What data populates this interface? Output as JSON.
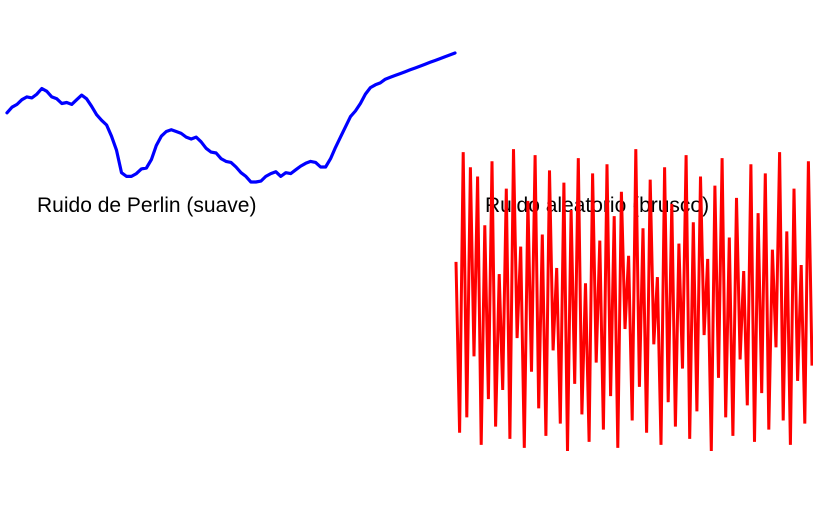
{
  "chart_data": [
    {
      "type": "line",
      "title": "Ruido de Perlin (suave)",
      "color": "#0000ff",
      "grid": false,
      "axes_visible": false,
      "x": [
        0,
        1,
        2,
        3,
        4,
        5,
        6,
        7,
        8,
        9,
        10,
        11,
        12,
        13,
        14,
        15,
        16,
        17,
        18,
        19,
        20,
        21,
        22,
        23,
        24,
        25,
        26,
        27,
        28,
        29,
        30,
        31,
        32,
        33,
        34,
        35,
        36,
        37,
        38,
        39,
        40,
        41,
        42,
        43,
        44,
        45,
        46,
        47,
        48,
        49,
        50,
        51,
        52,
        53,
        54,
        55,
        56,
        57,
        58,
        59,
        60,
        61,
        62,
        63,
        64,
        65,
        66,
        67,
        68,
        69,
        70,
        71,
        72,
        73,
        74,
        75,
        76,
        77,
        78,
        79,
        80,
        81,
        82,
        83,
        84,
        85,
        86,
        87,
        88,
        89,
        90
      ],
      "values": [
        0.7,
        0.76,
        0.79,
        0.84,
        0.87,
        0.86,
        0.9,
        0.96,
        0.93,
        0.87,
        0.85,
        0.8,
        0.81,
        0.79,
        0.84,
        0.89,
        0.85,
        0.77,
        0.68,
        0.62,
        0.57,
        0.45,
        0.3,
        0.06,
        0.02,
        0.02,
        0.05,
        0.1,
        0.11,
        0.2,
        0.35,
        0.45,
        0.5,
        0.52,
        0.5,
        0.48,
        0.44,
        0.42,
        0.44,
        0.39,
        0.32,
        0.28,
        0.27,
        0.21,
        0.18,
        0.17,
        0.12,
        0.06,
        0.02,
        -0.04,
        -0.04,
        -0.03,
        0.02,
        0.05,
        0.07,
        0.02,
        0.06,
        0.05,
        0.09,
        0.13,
        0.16,
        0.18,
        0.17,
        0.12,
        0.12,
        0.21,
        0.33,
        0.44,
        0.55,
        0.66,
        0.72,
        0.8,
        0.9,
        0.97,
        1.0,
        1.02,
        1.06,
        1.08,
        1.1,
        1.12,
        1.14,
        1.16,
        1.18,
        1.2,
        1.22,
        1.24,
        1.26,
        1.28,
        1.3,
        1.32,
        1.34
      ],
      "xlim": [
        0,
        90
      ],
      "ylim": [
        -0.5,
        1.8
      ]
    },
    {
      "type": "line",
      "title": "Ruido aleatorio (brusco)",
      "color": "#ff0000",
      "grid": false,
      "axes_visible": false,
      "x": [
        0,
        1,
        2,
        3,
        4,
        5,
        6,
        7,
        8,
        9,
        10,
        11,
        12,
        13,
        14,
        15,
        16,
        17,
        18,
        19,
        20,
        21,
        22,
        23,
        24,
        25,
        26,
        27,
        28,
        29,
        30,
        31,
        32,
        33,
        34,
        35,
        36,
        37,
        38,
        39,
        40,
        41,
        42,
        43,
        44,
        45,
        46,
        47,
        48,
        49,
        50,
        51,
        52,
        53,
        54,
        55,
        56,
        57,
        58,
        59,
        60,
        61,
        62,
        63,
        64,
        65,
        66,
        67,
        68,
        69,
        70,
        71,
        72,
        73,
        74,
        75,
        76,
        77,
        78,
        79,
        80,
        81,
        82,
        83,
        84,
        85,
        86,
        87,
        88,
        89,
        90,
        91,
        92,
        93,
        94,
        95,
        96,
        97,
        98,
        99
      ],
      "values": [
        0.62,
        0.06,
        0.98,
        0.11,
        0.93,
        0.31,
        0.9,
        0.02,
        0.74,
        0.17,
        0.95,
        0.08,
        0.58,
        0.2,
        0.86,
        0.04,
        0.99,
        0.37,
        0.67,
        0.01,
        0.82,
        0.26,
        0.97,
        0.14,
        0.71,
        0.05,
        0.92,
        0.33,
        0.6,
        0.09,
        0.88,
        0.0,
        0.79,
        0.22,
        0.96,
        0.12,
        0.55,
        0.03,
        0.91,
        0.29,
        0.69,
        0.07,
        0.94,
        0.18,
        0.77,
        0.01,
        0.85,
        0.4,
        0.64,
        0.1,
        0.99,
        0.21,
        0.73,
        0.06,
        0.89,
        0.35,
        0.57,
        0.02,
        0.93,
        0.16,
        0.81,
        0.08,
        0.68,
        0.27,
        0.97,
        0.04,
        0.75,
        0.13,
        0.9,
        0.38,
        0.63,
        0.0,
        0.87,
        0.24,
        0.96,
        0.11,
        0.7,
        0.05,
        0.83,
        0.3,
        0.59,
        0.15,
        0.94,
        0.03,
        0.78,
        0.19,
        0.91,
        0.07,
        0.66,
        0.34,
        0.98,
        0.1,
        0.72,
        0.02,
        0.86,
        0.23,
        0.61,
        0.09,
        0.95,
        0.28
      ],
      "xlim": [
        0,
        99
      ],
      "ylim": [
        0,
        1
      ]
    }
  ]
}
